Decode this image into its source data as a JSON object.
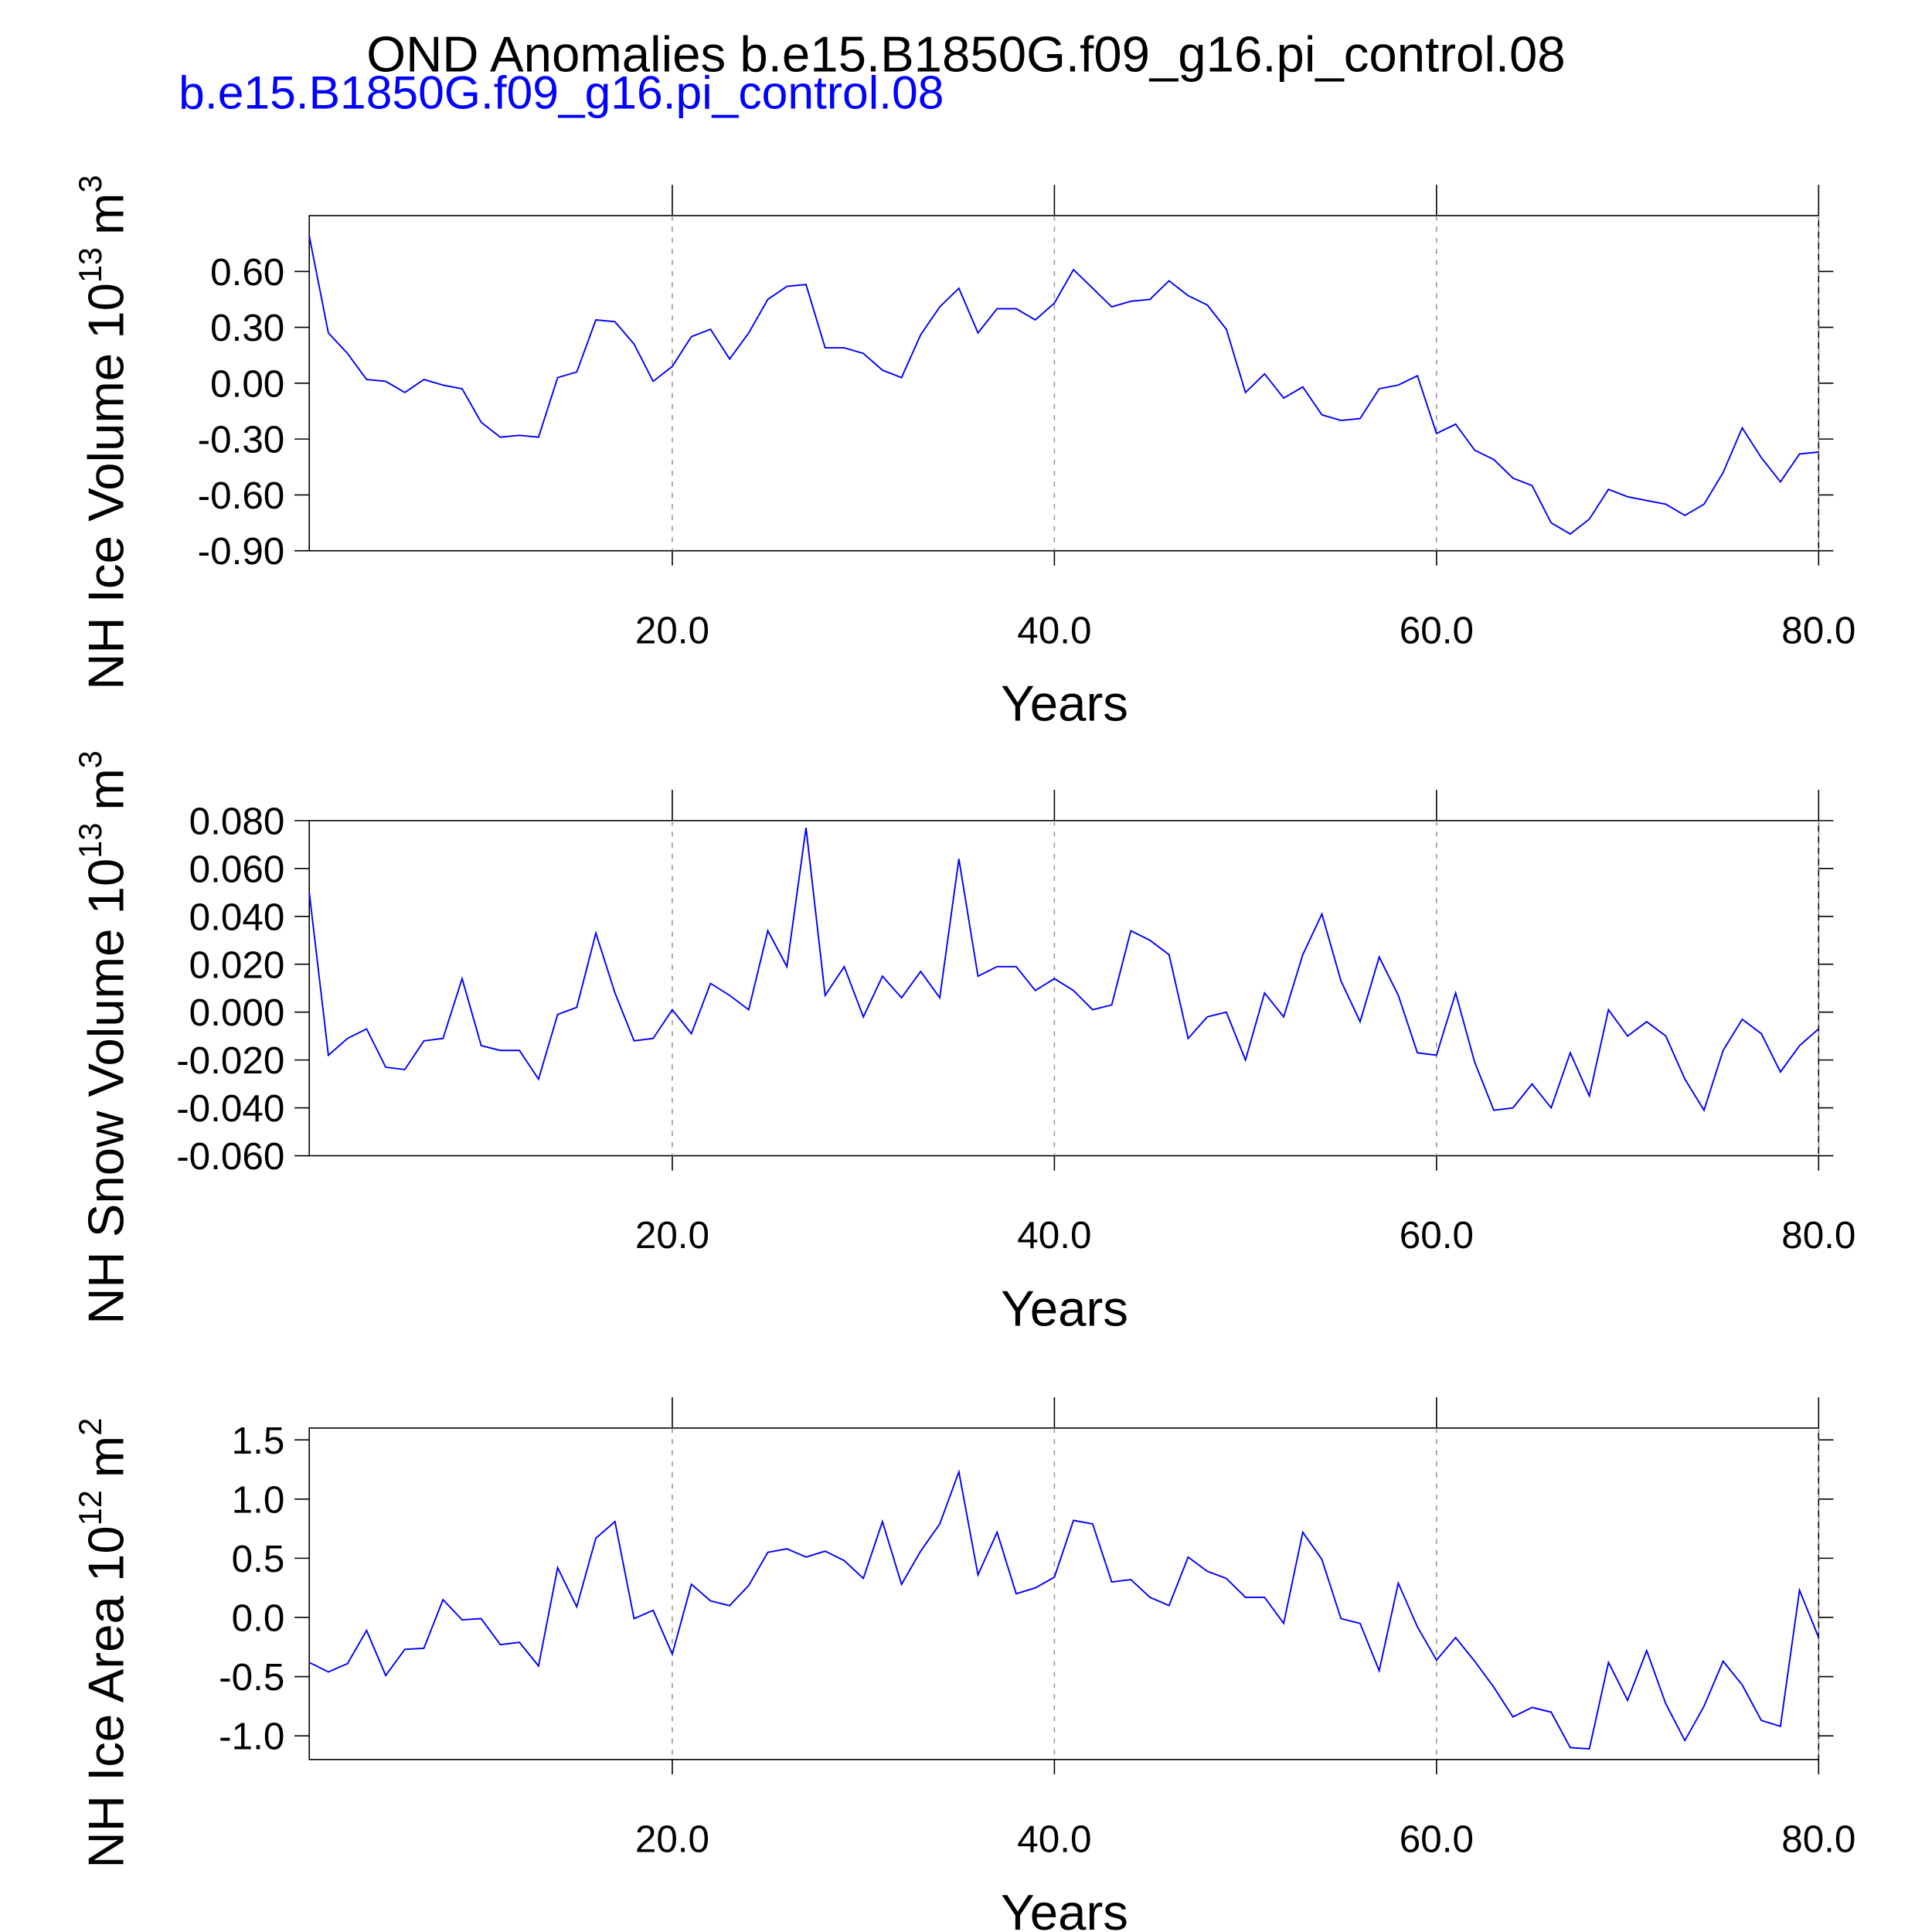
{
  "title": "OND Anomalies b.e15.B1850G.f09_g16.pi_control.08",
  "subtitle": "b.e15.B1850G.f09_g16.pi_control.08",
  "chart_data": [
    {
      "type": "line",
      "ylabel": "NH Ice Volume 10",
      "ylabel_exponent": "13",
      "ylabel_unit": "m",
      "ylabel_unit_exponent": "3",
      "xlabel": "Years",
      "color": "#0000ff",
      "xgrid": true,
      "x": [
        1,
        2,
        3,
        4,
        5,
        6,
        7,
        8,
        9,
        10,
        11,
        12,
        13,
        14,
        15,
        16,
        17,
        18,
        19,
        20,
        21,
        22,
        23,
        24,
        25,
        26,
        27,
        28,
        29,
        30,
        31,
        32,
        33,
        34,
        35,
        36,
        37,
        38,
        39,
        40,
        41,
        42,
        43,
        44,
        45,
        46,
        47,
        48,
        49,
        50,
        51,
        52,
        53,
        54,
        55,
        56,
        57,
        58,
        59,
        60,
        61,
        62,
        63,
        64,
        65,
        66,
        67,
        68,
        69,
        70,
        71,
        72,
        73,
        74,
        75,
        76,
        77,
        78,
        79,
        80
      ],
      "values": [
        0.79,
        0.27,
        0.16,
        0.02,
        0.01,
        -0.05,
        0.02,
        -0.01,
        -0.03,
        -0.21,
        -0.29,
        -0.28,
        -0.29,
        0.03,
        0.06,
        0.34,
        0.33,
        0.21,
        0.01,
        0.09,
        0.25,
        0.29,
        0.13,
        0.27,
        0.45,
        0.52,
        0.53,
        0.19,
        0.19,
        0.16,
        0.07,
        0.03,
        0.26,
        0.41,
        0.51,
        0.27,
        0.4,
        0.4,
        0.34,
        0.43,
        0.61,
        0.51,
        0.41,
        0.44,
        0.45,
        0.55,
        0.47,
        0.42,
        0.29,
        -0.05,
        0.05,
        -0.08,
        -0.02,
        -0.17,
        -0.2,
        -0.19,
        -0.03,
        -0.01,
        0.04,
        -0.27,
        -0.22,
        -0.36,
        -0.41,
        -0.51,
        -0.55,
        -0.75,
        -0.81,
        -0.73,
        -0.57,
        -0.61,
        -0.63,
        -0.65,
        -0.71,
        -0.65,
        -0.48,
        -0.24,
        -0.4,
        -0.53,
        -0.38,
        -0.37
      ],
      "xlim": [
        1,
        80
      ],
      "xticks": [
        {
          "value": 20,
          "label": "20.0"
        },
        {
          "value": 40,
          "label": "40.0"
        },
        {
          "value": 60,
          "label": "60.0"
        },
        {
          "value": 80,
          "label": "80.0"
        }
      ],
      "ylim": [
        -0.9,
        0.9
      ],
      "yticks": [
        {
          "value": -0.9,
          "label": "-0.90"
        },
        {
          "value": -0.6,
          "label": "-0.60"
        },
        {
          "value": -0.3,
          "label": "-0.30"
        },
        {
          "value": 0,
          "label": "0.00"
        },
        {
          "value": 0.3,
          "label": "0.30"
        },
        {
          "value": 0.6,
          "label": "0.60"
        }
      ]
    },
    {
      "type": "line",
      "ylabel": "NH Snow Volume 10",
      "ylabel_exponent": "13",
      "ylabel_unit": "m",
      "ylabel_unit_exponent": "3",
      "xlabel": "Years",
      "color": "#0000ff",
      "xgrid": true,
      "x": [
        1,
        2,
        3,
        4,
        5,
        6,
        7,
        8,
        9,
        10,
        11,
        12,
        13,
        14,
        15,
        16,
        17,
        18,
        19,
        20,
        21,
        22,
        23,
        24,
        25,
        26,
        27,
        28,
        29,
        30,
        31,
        32,
        33,
        34,
        35,
        36,
        37,
        38,
        39,
        40,
        41,
        42,
        43,
        44,
        45,
        46,
        47,
        48,
        49,
        50,
        51,
        52,
        53,
        54,
        55,
        56,
        57,
        58,
        59,
        60,
        61,
        62,
        63,
        64,
        65,
        66,
        67,
        68,
        69,
        70,
        71,
        72,
        73,
        74,
        75,
        76,
        77,
        78,
        79,
        80
      ],
      "values": [
        0.05,
        -0.018,
        -0.011,
        -0.007,
        -0.023,
        -0.024,
        -0.012,
        -0.011,
        0.014,
        -0.014,
        -0.016,
        -0.016,
        -0.028,
        -0.001,
        0.002,
        0.033,
        0.008,
        -0.012,
        -0.011,
        0.001,
        -0.009,
        0.012,
        0.007,
        0.001,
        0.034,
        0.019,
        0.077,
        0.007,
        0.019,
        -0.002,
        0.015,
        0.006,
        0.017,
        0.006,
        0.064,
        0.015,
        0.019,
        0.019,
        0.009,
        0.014,
        0.009,
        0.001,
        0.003,
        0.034,
        0.03,
        0.024,
        -0.011,
        -0.002,
        0.0,
        -0.02,
        0.008,
        -0.002,
        0.024,
        0.041,
        0.013,
        -0.004,
        0.023,
        0.007,
        -0.017,
        -0.018,
        0.008,
        -0.021,
        -0.041,
        -0.04,
        -0.03,
        -0.04,
        -0.017,
        -0.035,
        0.001,
        -0.01,
        -0.004,
        -0.01,
        -0.028,
        -0.041,
        -0.016,
        -0.003,
        -0.009,
        -0.025,
        -0.014,
        -0.007
      ],
      "xlim": [
        1,
        80
      ],
      "xticks": [
        {
          "value": 20,
          "label": "20.0"
        },
        {
          "value": 40,
          "label": "40.0"
        },
        {
          "value": 60,
          "label": "60.0"
        },
        {
          "value": 80,
          "label": "80.0"
        }
      ],
      "ylim": [
        -0.06,
        0.08
      ],
      "yticks": [
        {
          "value": -0.06,
          "label": "-0.060"
        },
        {
          "value": -0.04,
          "label": "-0.040"
        },
        {
          "value": -0.02,
          "label": "-0.020"
        },
        {
          "value": 0,
          "label": "0.000"
        },
        {
          "value": 0.02,
          "label": "0.020"
        },
        {
          "value": 0.04,
          "label": "0.040"
        },
        {
          "value": 0.06,
          "label": "0.060"
        },
        {
          "value": 0.08,
          "label": "0.080"
        }
      ]
    },
    {
      "type": "line",
      "ylabel": "NH Ice Area 10",
      "ylabel_exponent": "12",
      "ylabel_unit": "m",
      "ylabel_unit_exponent": "2",
      "xlabel": "Years",
      "color": "#0000ff",
      "xgrid": true,
      "x": [
        1,
        2,
        3,
        4,
        5,
        6,
        7,
        8,
        9,
        10,
        11,
        12,
        13,
        14,
        15,
        16,
        17,
        18,
        19,
        20,
        21,
        22,
        23,
        24,
        25,
        26,
        27,
        28,
        29,
        30,
        31,
        32,
        33,
        34,
        35,
        36,
        37,
        38,
        39,
        40,
        41,
        42,
        43,
        44,
        45,
        46,
        47,
        48,
        49,
        50,
        51,
        52,
        53,
        54,
        55,
        56,
        57,
        58,
        59,
        60,
        61,
        62,
        63,
        64,
        65,
        66,
        67,
        68,
        69,
        70,
        71,
        72,
        73,
        74,
        75,
        76,
        77,
        78,
        79,
        80
      ],
      "values": [
        -0.38,
        -0.46,
        -0.39,
        -0.11,
        -0.49,
        -0.27,
        -0.26,
        0.15,
        -0.02,
        -0.01,
        -0.23,
        -0.21,
        -0.41,
        0.42,
        0.09,
        0.67,
        0.81,
        -0.01,
        0.06,
        -0.31,
        0.28,
        0.14,
        0.1,
        0.27,
        0.55,
        0.58,
        0.51,
        0.56,
        0.48,
        0.33,
        0.81,
        0.28,
        0.56,
        0.79,
        1.23,
        0.36,
        0.72,
        0.2,
        0.25,
        0.34,
        0.82,
        0.79,
        0.3,
        0.32,
        0.17,
        0.1,
        0.51,
        0.39,
        0.33,
        0.17,
        0.17,
        -0.05,
        0.72,
        0.49,
        -0.01,
        -0.05,
        -0.45,
        0.29,
        -0.08,
        -0.36,
        -0.17,
        -0.37,
        -0.59,
        -0.84,
        -0.76,
        -0.8,
        -1.1,
        -1.11,
        -0.38,
        -0.7,
        -0.28,
        -0.73,
        -1.04,
        -0.75,
        -0.37,
        -0.57,
        -0.87,
        -0.92,
        0.23,
        -0.17
      ],
      "xlim": [
        1,
        80
      ],
      "xticks": [
        {
          "value": 20,
          "label": "20.0"
        },
        {
          "value": 40,
          "label": "40.0"
        },
        {
          "value": 60,
          "label": "60.0"
        },
        {
          "value": 80,
          "label": "80.0"
        }
      ],
      "ylim": [
        -1.2,
        1.6
      ],
      "yticks": [
        {
          "value": -1,
          "label": "-1.0"
        },
        -0.5,
        {
          "value": 0,
          "label": "0.0"
        },
        0.5,
        {
          "value": 1,
          "label": "1.0"
        },
        1.5
      ]
    }
  ]
}
